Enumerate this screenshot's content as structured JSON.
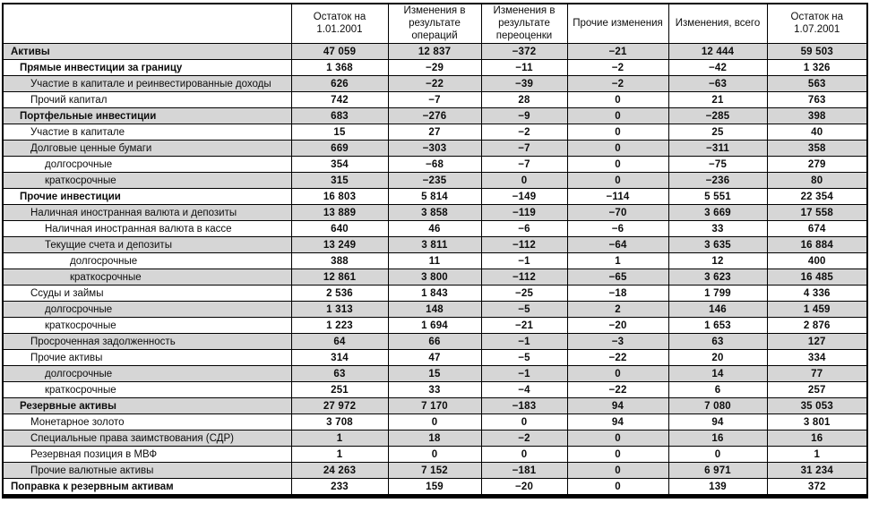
{
  "table": {
    "columns": [
      "Остаток на 1.01.2001",
      "Изменения в результате операций",
      "Изменения в результате переоценки",
      "Прочие изменения",
      "Изменения, всего",
      "Остаток на 1.07.2001"
    ],
    "rows": [
      {
        "label": "Активы",
        "indent": 0,
        "bold": true,
        "values": [
          "47 059",
          "12 837",
          "−372",
          "−21",
          "12 444",
          "59 503"
        ]
      },
      {
        "label": "Прямые инвестиции за границу",
        "indent": 1,
        "bold": true,
        "values": [
          "1 368",
          "−29",
          "−11",
          "−2",
          "−42",
          "1 326"
        ]
      },
      {
        "label": "Участие в капитале и реинвестированные доходы",
        "indent": 2,
        "bold": false,
        "values": [
          "626",
          "−22",
          "−39",
          "−2",
          "−63",
          "563"
        ]
      },
      {
        "label": "Прочий капитал",
        "indent": 2,
        "bold": false,
        "values": [
          "742",
          "−7",
          "28",
          "0",
          "21",
          "763"
        ]
      },
      {
        "label": "Портфельные инвестиции",
        "indent": 1,
        "bold": true,
        "values": [
          "683",
          "−276",
          "−9",
          "0",
          "−285",
          "398"
        ]
      },
      {
        "label": "Участие в капитале",
        "indent": 2,
        "bold": false,
        "values": [
          "15",
          "27",
          "−2",
          "0",
          "25",
          "40"
        ]
      },
      {
        "label": "Долговые ценные бумаги",
        "indent": 2,
        "bold": false,
        "values": [
          "669",
          "−303",
          "−7",
          "0",
          "−311",
          "358"
        ]
      },
      {
        "label": "долгосрочные",
        "indent": 3,
        "bold": false,
        "values": [
          "354",
          "−68",
          "−7",
          "0",
          "−75",
          "279"
        ]
      },
      {
        "label": "краткосрочные",
        "indent": 3,
        "bold": false,
        "values": [
          "315",
          "−235",
          "0",
          "0",
          "−236",
          "80"
        ]
      },
      {
        "label": "Прочие инвестиции",
        "indent": 1,
        "bold": true,
        "values": [
          "16 803",
          "5 814",
          "−149",
          "−114",
          "5 551",
          "22 354"
        ]
      },
      {
        "label": "Наличная иностранная валюта и депозиты",
        "indent": 2,
        "bold": false,
        "values": [
          "13 889",
          "3 858",
          "−119",
          "−70",
          "3 669",
          "17 558"
        ]
      },
      {
        "label": "Наличная иностранная валюта в кассе",
        "indent": 3,
        "bold": false,
        "values": [
          "640",
          "46",
          "−6",
          "−6",
          "33",
          "674"
        ]
      },
      {
        "label": "Текущие счета и депозиты",
        "indent": 3,
        "bold": false,
        "values": [
          "13 249",
          "3 811",
          "−112",
          "−64",
          "3 635",
          "16 884"
        ]
      },
      {
        "label": "долгосрочные",
        "indent": 4,
        "bold": false,
        "values": [
          "388",
          "11",
          "−1",
          "1",
          "12",
          "400"
        ]
      },
      {
        "label": "краткосрочные",
        "indent": 4,
        "bold": false,
        "values": [
          "12 861",
          "3 800",
          "−112",
          "−65",
          "3 623",
          "16 485"
        ]
      },
      {
        "label": "Ссуды и займы",
        "indent": 2,
        "bold": false,
        "values": [
          "2 536",
          "1 843",
          "−25",
          "−18",
          "1 799",
          "4 336"
        ]
      },
      {
        "label": "долгосрочные",
        "indent": 3,
        "bold": false,
        "values": [
          "1 313",
          "148",
          "−5",
          "2",
          "146",
          "1 459"
        ]
      },
      {
        "label": "краткосрочные",
        "indent": 3,
        "bold": false,
        "values": [
          "1 223",
          "1 694",
          "−21",
          "−20",
          "1 653",
          "2 876"
        ]
      },
      {
        "label": "Просроченная задолженность",
        "indent": 2,
        "bold": false,
        "values": [
          "64",
          "66",
          "−1",
          "−3",
          "63",
          "127"
        ]
      },
      {
        "label": "Прочие активы",
        "indent": 2,
        "bold": false,
        "values": [
          "314",
          "47",
          "−5",
          "−22",
          "20",
          "334"
        ]
      },
      {
        "label": "долгосрочные",
        "indent": 3,
        "bold": false,
        "values": [
          "63",
          "15",
          "−1",
          "0",
          "14",
          "77"
        ]
      },
      {
        "label": "краткосрочные",
        "indent": 3,
        "bold": false,
        "values": [
          "251",
          "33",
          "−4",
          "−22",
          "6",
          "257"
        ]
      },
      {
        "label": "Резервные активы",
        "indent": 1,
        "bold": true,
        "values": [
          "27 972",
          "7 170",
          "−183",
          "94",
          "7 080",
          "35 053"
        ]
      },
      {
        "label": "Монетарное золото",
        "indent": 2,
        "bold": false,
        "values": [
          "3 708",
          "0",
          "0",
          "94",
          "94",
          "3 801"
        ]
      },
      {
        "label": "Специальные права заимствования (СДР)",
        "indent": 2,
        "bold": false,
        "values": [
          "1",
          "18",
          "−2",
          "0",
          "16",
          "16"
        ]
      },
      {
        "label": "Резервная позиция в МВФ",
        "indent": 2,
        "bold": false,
        "values": [
          "1",
          "0",
          "0",
          "0",
          "0",
          "1"
        ]
      },
      {
        "label": "Прочие валютные активы",
        "indent": 2,
        "bold": false,
        "values": [
          "24 263",
          "7 152",
          "−181",
          "0",
          "6 971",
          "31 234"
        ]
      },
      {
        "label": "Поправка к резервным активам",
        "indent": 0,
        "bold": true,
        "values": [
          "233",
          "159",
          "−20",
          "0",
          "139",
          "372"
        ]
      }
    ]
  }
}
